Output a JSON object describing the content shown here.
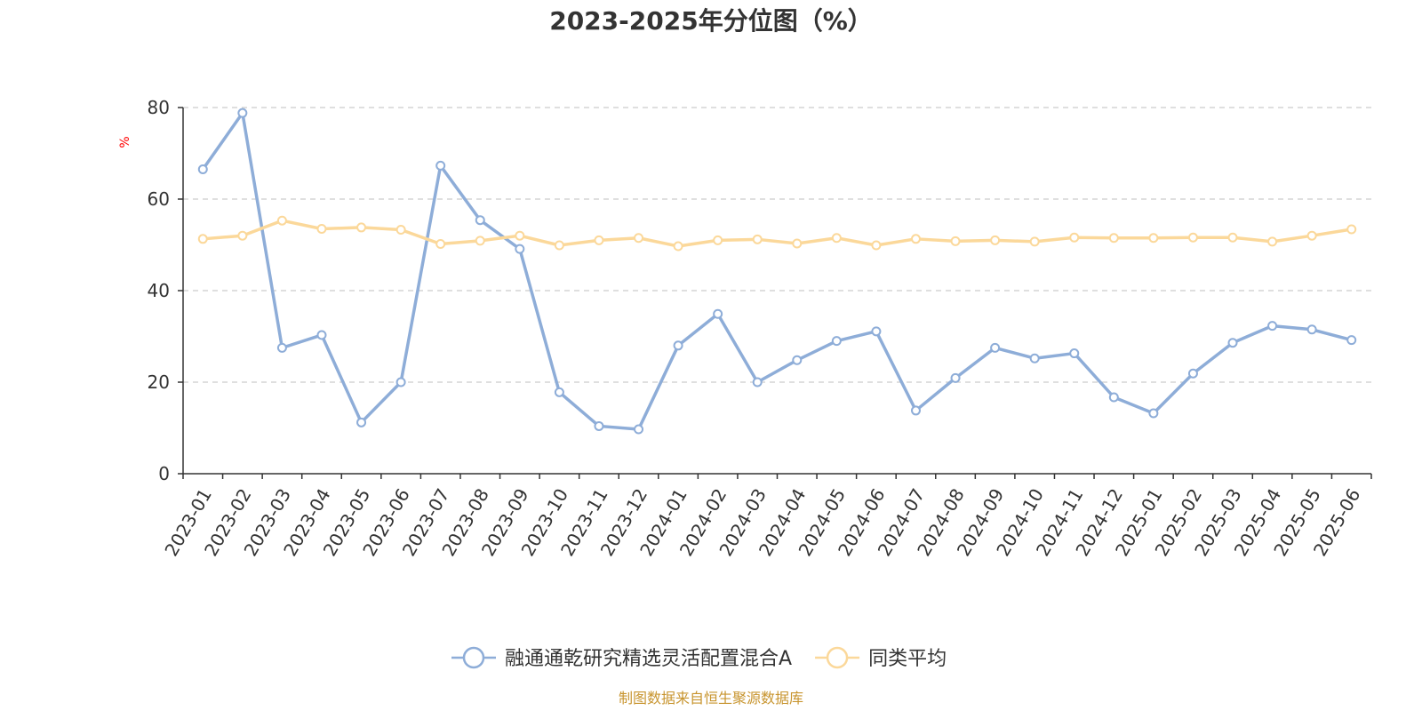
{
  "chart_data": {
    "type": "line",
    "title": "2023-2025年分位图（%）",
    "ylabel": "%",
    "ylim": [
      0,
      80
    ],
    "yticks": [
      0,
      20,
      40,
      60,
      80
    ],
    "grid": true,
    "legend_position": "bottom",
    "categories": [
      "2023-01",
      "2023-02",
      "2023-03",
      "2023-04",
      "2023-05",
      "2023-06",
      "2023-07",
      "2023-08",
      "2023-09",
      "2023-10",
      "2023-11",
      "2023-12",
      "2024-01",
      "2024-02",
      "2024-03",
      "2024-04",
      "2024-05",
      "2024-06",
      "2024-07",
      "2024-08",
      "2024-09",
      "2024-10",
      "2024-11",
      "2024-12",
      "2025-01",
      "2025-02",
      "2025-03",
      "2025-04",
      "2025-05",
      "2025-06"
    ],
    "series": [
      {
        "name": "融通通乾研究精选灵活配置混合A",
        "color": "#8eadd8",
        "values": [
          66.5,
          78.8,
          27.5,
          30.3,
          11.2,
          20.0,
          67.3,
          55.4,
          49.1,
          17.8,
          10.4,
          9.7,
          28.0,
          34.9,
          20.0,
          24.8,
          29.0,
          31.1,
          13.8,
          20.9,
          27.5,
          25.2,
          26.3,
          16.7,
          13.2,
          21.9,
          28.6,
          32.3,
          31.5,
          29.2
        ]
      },
      {
        "name": "同类平均",
        "color": "#fbd89a",
        "values": [
          51.3,
          52.0,
          55.3,
          53.5,
          53.8,
          53.3,
          50.2,
          50.9,
          52.0,
          49.9,
          51.0,
          51.5,
          49.7,
          51.0,
          51.2,
          50.3,
          51.5,
          49.9,
          51.3,
          50.8,
          51.0,
          50.7,
          51.6,
          51.5,
          51.5,
          51.6,
          51.6,
          50.7,
          52.0,
          53.4
        ]
      }
    ]
  },
  "footer": {
    "source_text": "制图数据来自恒生聚源数据库",
    "source_color": "#c8952f"
  },
  "colors": {
    "axis": "#333333",
    "grid": "#cccccc",
    "ylabel": "#ff0000"
  }
}
